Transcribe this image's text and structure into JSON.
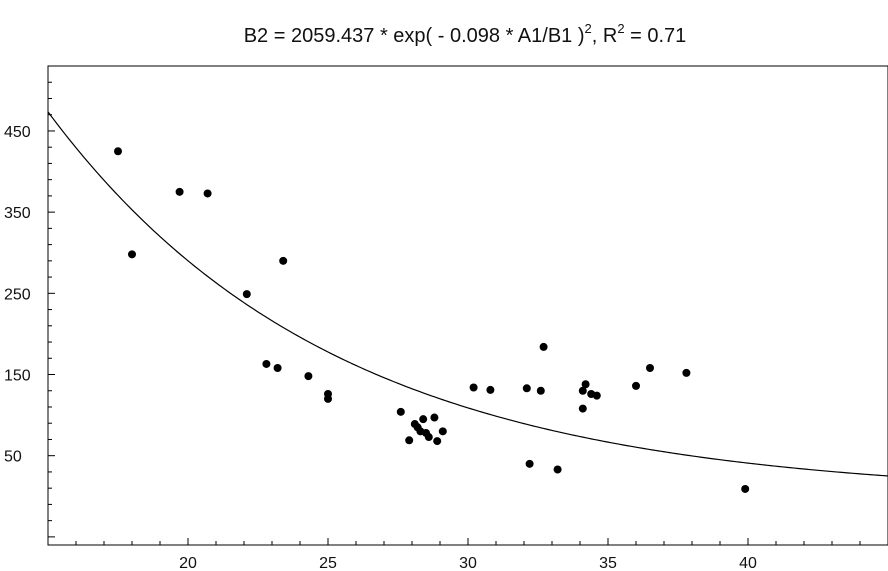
{
  "chart_data": {
    "type": "scatter",
    "title": {
      "before_sup": "B2 = 2059.437 * exp( - 0.098 * A1/B1 )",
      "sup": "2",
      "after_sup": ", R",
      "sup2": "2",
      "after_sup2": " = 0.71"
    },
    "xlabel": "",
    "ylabel": "",
    "xlim": [
      15,
      45
    ],
    "ylim": [
      -60,
      530
    ],
    "x_ticks": [
      20,
      25,
      30,
      35,
      40
    ],
    "y_ticks": [
      50,
      150,
      250,
      350,
      450
    ],
    "grid": false,
    "fit_curve": {
      "a": 2059.437,
      "b": 0.098
    },
    "points": [
      [
        17.5,
        425
      ],
      [
        18.0,
        298
      ],
      [
        19.7,
        375
      ],
      [
        20.7,
        373
      ],
      [
        22.1,
        249
      ],
      [
        23.4,
        290
      ],
      [
        22.8,
        163
      ],
      [
        23.2,
        158
      ],
      [
        24.3,
        148
      ],
      [
        25.0,
        126
      ],
      [
        25.0,
        120
      ],
      [
        27.6,
        104
      ],
      [
        27.9,
        69
      ],
      [
        28.1,
        89
      ],
      [
        28.2,
        85
      ],
      [
        28.3,
        80
      ],
      [
        28.4,
        95
      ],
      [
        28.5,
        78
      ],
      [
        28.6,
        73
      ],
      [
        28.8,
        97
      ],
      [
        28.9,
        68
      ],
      [
        29.1,
        80
      ],
      [
        30.2,
        134
      ],
      [
        30.8,
        131
      ],
      [
        32.1,
        133
      ],
      [
        32.2,
        40
      ],
      [
        32.6,
        130
      ],
      [
        32.7,
        184
      ],
      [
        33.2,
        33
      ],
      [
        34.1,
        108
      ],
      [
        34.2,
        138
      ],
      [
        34.1,
        130
      ],
      [
        34.4,
        126
      ],
      [
        34.6,
        124
      ],
      [
        36.0,
        136
      ],
      [
        36.5,
        158
      ],
      [
        37.8,
        152
      ],
      [
        39.9,
        9
      ]
    ]
  }
}
